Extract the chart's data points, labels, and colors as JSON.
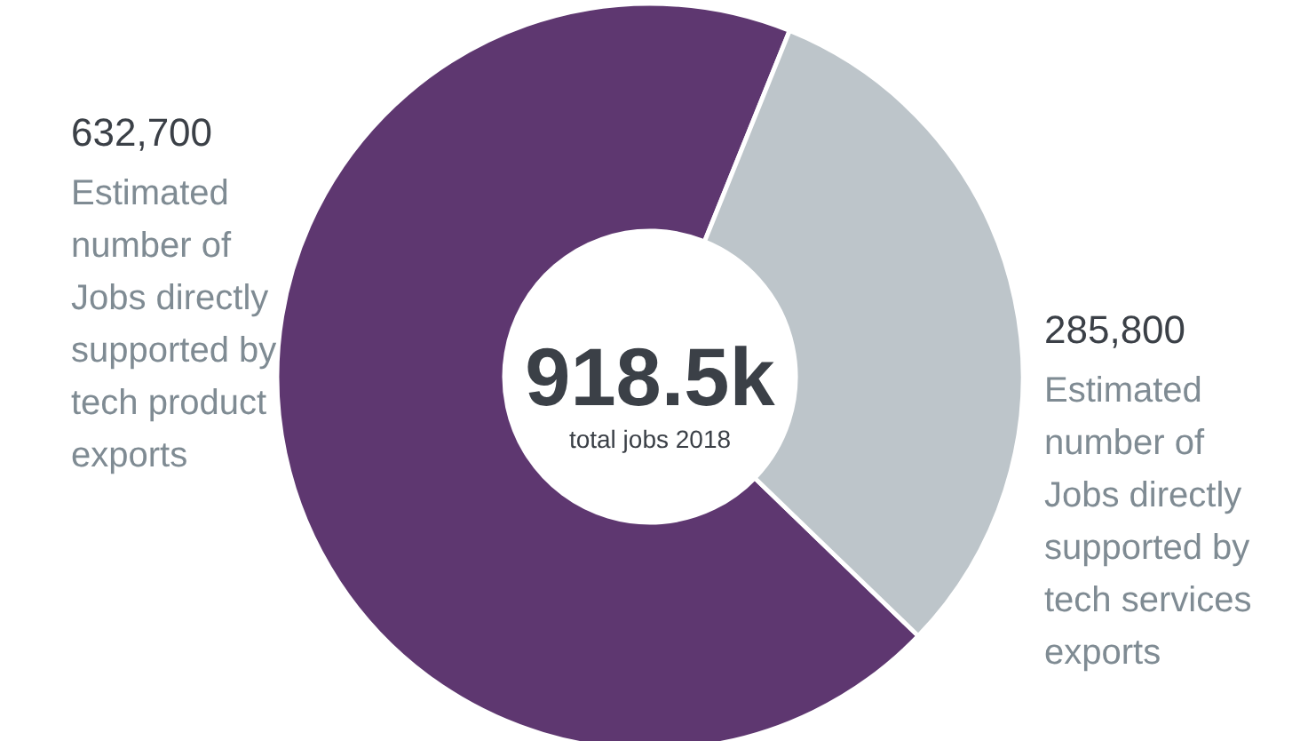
{
  "chart_data": {
    "type": "donut",
    "title": "918.5k",
    "subtitle": "total jobs 2018",
    "categories": [
      "Estimated number of Jobs directly supported by tech product exports",
      "Estimated number of Jobs directly supported by tech services exports"
    ],
    "values": [
      632700,
      285800
    ],
    "value_labels": [
      "632,700",
      "285,800"
    ],
    "colors": [
      "#5e3770",
      "#bdc5ca"
    ]
  }
}
